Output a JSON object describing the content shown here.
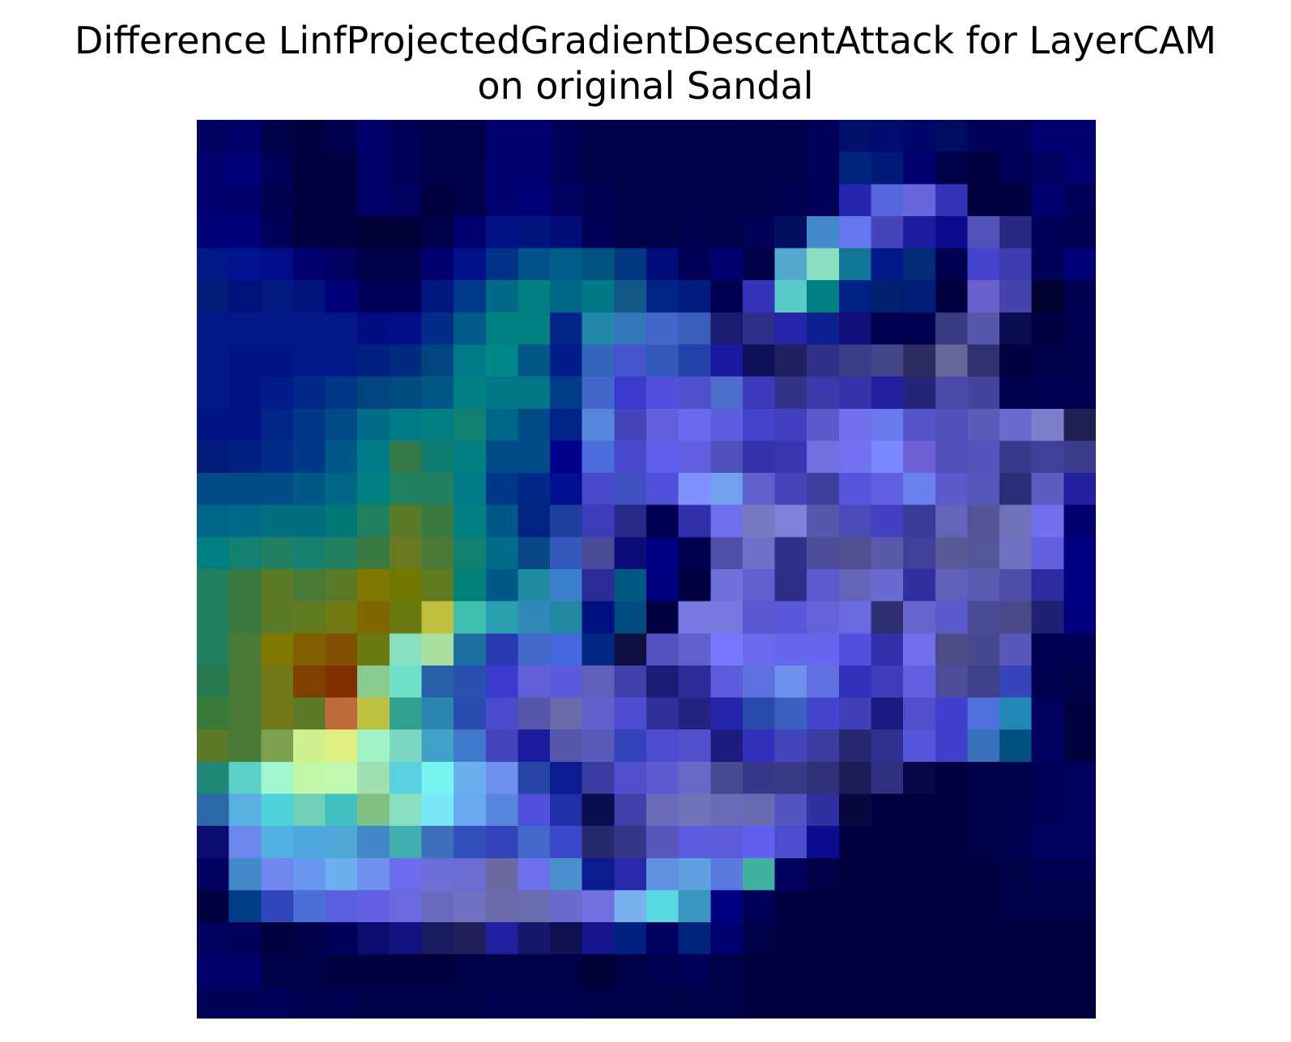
{
  "title_line1": "Difference LinfProjectedGradientDescentAttack for LayerCAM",
  "title_line2": "on original Sandal",
  "chart_data": {
    "type": "heatmap",
    "title": "Difference LinfProjectedGradientDescentAttack for LayerCAM on original Sandal",
    "rows": 28,
    "cols": 28,
    "axes_visible": false,
    "grid": false,
    "legend": "none",
    "colors": [
      "#000060",
      "#00006a",
      "#000048",
      "#000040",
      "#000050",
      "#00006a",
      "#000058",
      "#00004a",
      "#000048",
      "#00006e",
      "#000070",
      "#000058",
      "#000048",
      "#000048",
      "#000048",
      "#000048",
      "#000048",
      "#00004a",
      "#000048",
      "#000058",
      "#00106a",
      "#000c70",
      "#00066a",
      "#000c60",
      "#000058",
      "#00005a",
      "#000070",
      "#000070",
      "#000070",
      "#00007a",
      "#000058",
      "#000040",
      "#000040",
      "#00006a",
      "#000058",
      "#00004a",
      "#000048",
      "#000070",
      "#000070",
      "#000058",
      "#000048",
      "#000048",
      "#000048",
      "#000048",
      "#000048",
      "#00004a",
      "#000048",
      "#000058",
      "#00247c",
      "#001a78",
      "#000070",
      "#00004a",
      "#000040",
      "#000058",
      "#000060",
      "#000070",
      "#000070",
      "#00006a",
      "#000050",
      "#000040",
      "#000040",
      "#00006a",
      "#000060",
      "#000040",
      "#000048",
      "#000070",
      "#000078",
      "#000060",
      "#000050",
      "#000048",
      "#000048",
      "#000048",
      "#000048",
      "#00004a",
      "#000050",
      "#000058",
      "#2424b0",
      "#5566dd",
      "#6666dd",
      "#3333b8",
      "#000040",
      "#000040",
      "#000070",
      "#000058",
      "#000078",
      "#00007a",
      "#000058",
      "#000040",
      "#000040",
      "#000038",
      "#000038",
      "#000048",
      "#000070",
      "#001488",
      "#001480",
      "#000c78",
      "#000058",
      "#00004a",
      "#000048",
      "#000050",
      "#000048",
      "#000058",
      "#000e60",
      "#4488cc",
      "#6677ee",
      "#4444bb",
      "#1c1ca0",
      "#0c0c90",
      "#5252b8",
      "#282880",
      "#000058",
      "#000050",
      "#001888",
      "#001490",
      "#000c88",
      "#000070",
      "#000060",
      "#000048",
      "#000048",
      "#000070",
      "#001088",
      "#003388",
      "#005288",
      "#005c88",
      "#005580",
      "#003880",
      "#000c78",
      "#000058",
      "#000070",
      "#000048",
      "#55aacc",
      "#88e0c0",
      "#117799",
      "#001888",
      "#002c78",
      "#000050",
      "#4444cc",
      "#3c3cb0",
      "#000058",
      "#000078",
      "#001c78",
      "#00107a",
      "#001a80",
      "#001480",
      "#000078",
      "#000058",
      "#000058",
      "#001880",
      "#003a88",
      "#006a88",
      "#008080",
      "#006688",
      "#007888",
      "#115888",
      "#00248a",
      "#001c80",
      "#000050",
      "#3333bb",
      "#55ccc8",
      "#008080",
      "#002088",
      "#002070",
      "#001e78",
      "#000040",
      "#6a60cc",
      "#4444aa",
      "#000030",
      "#000050",
      "#001888",
      "#001888",
      "#001888",
      "#001888",
      "#001888",
      "#000c80",
      "#000c88",
      "#002c88",
      "#005a88",
      "#008080",
      "#008080",
      "#002488",
      "#2288aa",
      "#3377bb",
      "#4466cc",
      "#3a5eb8",
      "#1a1a70",
      "#2e2e88",
      "#2424aa",
      "#0c2090",
      "#101078",
      "#000050",
      "#000050",
      "#3a3a80",
      "#5656aa",
      "#0c0c50",
      "#000040",
      "#000050",
      "#001888",
      "#001488",
      "#001488",
      "#001888",
      "#001888",
      "#002080",
      "#002a80",
      "#004480",
      "#007a88",
      "#008888",
      "#005888",
      "#001c88",
      "#3366bb",
      "#4455cc",
      "#3358bb",
      "#2244aa",
      "#1818a0",
      "#101058",
      "#202060",
      "#303088",
      "#3c3c88",
      "#444488",
      "#2c2c60",
      "#666699",
      "#303070",
      "#000040",
      "#000048",
      "#000050",
      "#001888",
      "#001488",
      "#001c88",
      "#002888",
      "#003888",
      "#004480",
      "#004c80",
      "#005888",
      "#008080",
      "#007888",
      "#007888",
      "#003c88",
      "#4466cc",
      "#3a3acc",
      "#5050dd",
      "#5050cc",
      "#4e6ecc",
      "#3a3aba",
      "#333388",
      "#3a3aaa",
      "#3333aa",
      "#2020a0",
      "#242478",
      "#4a4aaa",
      "#44449e",
      "#000050",
      "#000050",
      "#000050",
      "#001488",
      "#001488",
      "#002488",
      "#003888",
      "#004a88",
      "#006c88",
      "#007a88",
      "#008080",
      "#128070",
      "#006688",
      "#004a88",
      "#002488",
      "#5588dd",
      "#4444bb",
      "#6060dd",
      "#6a6aee",
      "#5c5ce0",
      "#4444cc",
      "#4040c0",
      "#5a5acc",
      "#7070ee",
      "#6a7aee",
      "#5555cc",
      "#5050bb",
      "#5a5ab8",
      "#6a6acc",
      "#7e7ecc",
      "#202050",
      "#001c78",
      "#002080",
      "#002c88",
      "#003888",
      "#005888",
      "#007a88",
      "#337a48",
      "#107c70",
      "#008080",
      "#004a88",
      "#004c88",
      "#00008a",
      "#4c6cdd",
      "#4848cc",
      "#6060ee",
      "#6060e0",
      "#5050bb",
      "#3333aa",
      "#3636b0",
      "#7070e0",
      "#7070f0",
      "#7a88ff",
      "#7060d8",
      "#5050bb",
      "#5454bb",
      "#3a3a8c",
      "#40409a",
      "#3c3c8c",
      "#004a88",
      "#004a88",
      "#004c88",
      "#005888",
      "#006688",
      "#008080",
      "#208060",
      "#208060",
      "#007a88",
      "#003888",
      "#002888",
      "#001090",
      "#4848cc",
      "#3c50c0",
      "#5050dd",
      "#8090ff",
      "#70a0ee",
      "#6060cc",
      "#4444bb",
      "#3e3e9e",
      "#5656dd",
      "#6060e0",
      "#6a80ee",
      "#5a5acc",
      "#5656bb",
      "#2c2c78",
      "#5c5cc0",
      "#2020a0",
      "#006688",
      "#006a88",
      "#007080",
      "#007080",
      "#007878",
      "#208060",
      "#5a7a28",
      "#3a7a40",
      "#008080",
      "#005888",
      "#002480",
      "#2040a0",
      "#3c3cbb",
      "#282888",
      "#000050",
      "#3030a8",
      "#7070ee",
      "#7878c0",
      "#8080d8",
      "#5656aa",
      "#4a4ab8",
      "#4040c0",
      "#3a3a99",
      "#6464bb",
      "#545496",
      "#7070bb",
      "#7070ee",
      "#000070",
      "#008080",
      "#108070",
      "#208060",
      "#188070",
      "#208060",
      "#3a7a40",
      "#6a7a20",
      "#4a7a38",
      "#108070",
      "#006c88",
      "#0c4888",
      "#3358bb",
      "#4a4a99",
      "#0c0c78",
      "#000080",
      "#000050",
      "#5050a8",
      "#7070c8",
      "#303088",
      "#4c4c99",
      "#505090",
      "#5a5aaa",
      "#40409a",
      "#5a5a99",
      "#56569a",
      "#7070c0",
      "#6060dd",
      "#000080",
      "#208060",
      "#3a7a40",
      "#5a7a28",
      "#4a7a38",
      "#5a7a28",
      "#807800",
      "#707800",
      "#607a20",
      "#008078",
      "#005888",
      "#1e8ca0",
      "#3a80cc",
      "#2c2c99",
      "#005880",
      "#000080",
      "#000040",
      "#7070dd",
      "#6060d0",
      "#2e2e88",
      "#5c5cd0",
      "#6464bb",
      "#6a6ad0",
      "#3030a0",
      "#6060bb",
      "#5a5ab0",
      "#4e4ea8",
      "#2c2ca0",
      "#000080",
      "#208060",
      "#3a7a40",
      "#5a7a28",
      "#607a20",
      "#707a10",
      "#806800",
      "#6a7a10",
      "#c0c040",
      "#40c0b0",
      "#28a0b0",
      "#3088b8",
      "#2288a0",
      "#00107e",
      "#004c80",
      "#000040",
      "#7878e0",
      "#7878e0",
      "#5858d0",
      "#5858d8",
      "#6464d8",
      "#6a6ae0",
      "#2e2e70",
      "#6666cc",
      "#5a5acc",
      "#4a4a99",
      "#4a4a88",
      "#202070",
      "#000080",
      "#208060",
      "#4a7a38",
      "#807800",
      "#806000",
      "#805000",
      "#6a7a10",
      "#88e0c0",
      "#a8e0a0",
      "#1c70a0",
      "#2a3ab0",
      "#4468cc",
      "#4468dd",
      "#002880",
      "#101040",
      "#5050c0",
      "#6060cc",
      "#7878ff",
      "#6a6aee",
      "#6666ee",
      "#6666ee",
      "#5050dd",
      "#3030aa",
      "#7070ee",
      "#4c4c88",
      "#484890",
      "#5858bb",
      "#000050",
      "#000050",
      "#287850",
      "#4a7a38",
      "#707818",
      "#804000",
      "#803000",
      "#88cc90",
      "#70e0c8",
      "#2860a8",
      "#2850b0",
      "#3a3acc",
      "#6060d8",
      "#5a5add",
      "#6060bb",
      "#4040aa",
      "#1c1c78",
      "#2c2c99",
      "#5c5cdd",
      "#5c70e0",
      "#7090ee",
      "#6070e0",
      "#3030b8",
      "#3c3cb8",
      "#6060e0",
      "#4c4c99",
      "#404088",
      "#3844bb",
      "#000050",
      "#000048",
      "#3a7a38",
      "#4a7a38",
      "#707818",
      "#5a7a28",
      "#bb6a38",
      "#c0c040",
      "#30a090",
      "#2a88b0",
      "#2a4ab0",
      "#4a4acc",
      "#5656aa",
      "#6a6aaa",
      "#6060cc",
      "#4c4cd0",
      "#303098",
      "#242480",
      "#2424aa",
      "#2a4aaa",
      "#3c60c0",
      "#4444cc",
      "#4040b8",
      "#1a1a80",
      "#5050cc",
      "#4040cc",
      "#5070dd",
      "#2288b8",
      "#000060",
      "#000040",
      "#5a7a28",
      "#4a7a38",
      "#7aa050",
      "#cef090",
      "#e0f080",
      "#a0f0c8",
      "#7ad8c0",
      "#40a0c8",
      "#4078cc",
      "#4444bb",
      "#1c1ca0",
      "#5656aa",
      "#5a5abb",
      "#3344bb",
      "#4c4cd0",
      "#5050cc",
      "#1c1c80",
      "#3030bb",
      "#4444bb",
      "#3c3ca0",
      "#282870",
      "#303090",
      "#5656dd",
      "#4040cc",
      "#3870bb",
      "#005080",
      "#000060",
      "#000040",
      "#208878",
      "#5ad0c8",
      "#a0f8d0",
      "#c0f8a8",
      "#c0f8b0",
      "#a0e0b0",
      "#58d0e0",
      "#78f4f0",
      "#68b0ee",
      "#7090ee",
      "#2844a8",
      "#0c1c90",
      "#3a3aa0",
      "#5050cc",
      "#5c5cd0",
      "#6868c8",
      "#4a4a90",
      "#383888",
      "#3a3a88",
      "#303078",
      "#1c1c58",
      "#303080",
      "#080848",
      "#000040",
      "#000048",
      "#000048",
      "#000058",
      "#000060",
      "#2a68a8",
      "#58b0e0",
      "#50d0d8",
      "#70d0b8",
      "#40c0c0",
      "#80c080",
      "#88e0c0",
      "#78e8f8",
      "#6aa8ee",
      "#5888dd",
      "#5050dd",
      "#2030a8",
      "#0c0c50",
      "#4040aa",
      "#6a6ab8",
      "#7272b8",
      "#6a6ab8",
      "#6a6ab0",
      "#5454c0",
      "#3030a0",
      "#080840",
      "#000040",
      "#000040",
      "#000040",
      "#000048",
      "#000050",
      "#000058",
      "#000060",
      "#0c0c70",
      "#6a88ee",
      "#50b0e0",
      "#50a8e0",
      "#50a8d8",
      "#4088c8",
      "#40b0b0",
      "#3c70bb",
      "#3050bb",
      "#3344bb",
      "#4468cc",
      "#3c48cc",
      "#28286c",
      "#363688",
      "#5656bb",
      "#5c5ce0",
      "#5c5cd8",
      "#6060ee",
      "#4c4cd0",
      "#0c0c90",
      "#000040",
      "#000040",
      "#000040",
      "#000040",
      "#000048",
      "#000050",
      "#000060",
      "#000060",
      "#000060",
      "#4488cc",
      "#7088ee",
      "#6a98ee",
      "#6ab0ee",
      "#7090ee",
      "#6c6cee",
      "#6e6ed8",
      "#6c6cd0",
      "#6a6aa0",
      "#6c70ee",
      "#4a90cc",
      "#0c1c90",
      "#2828aa",
      "#6090e0",
      "#60a0e0",
      "#5a7ae0",
      "#40b0a0",
      "#000060",
      "#000048",
      "#000040",
      "#000040",
      "#000040",
      "#000040",
      "#000040",
      "#000048",
      "#000050",
      "#000050",
      "#000040",
      "#003c88",
      "#3044bb",
      "#4a70d8",
      "#5860dd",
      "#6060e0",
      "#6a6ae0",
      "#6a6ac0",
      "#7070c0",
      "#6a6aaa",
      "#6c6cb0",
      "#6a6acc",
      "#7070e0",
      "#78b0f0",
      "#5ad8e0",
      "#3a98c0",
      "#000080",
      "#000058",
      "#000040",
      "#000040",
      "#000040",
      "#000040",
      "#000040",
      "#000040",
      "#000040",
      "#000048",
      "#000048",
      "#000048",
      "#000060",
      "#000058",
      "#000040",
      "#000048",
      "#000058",
      "#0c0c70",
      "#121280",
      "#1a1a60",
      "#20205a",
      "#2020a0",
      "#18186a",
      "#101050",
      "#14148c",
      "#002080",
      "#000060",
      "#00247c",
      "#000070",
      "#000048",
      "#000040",
      "#000040",
      "#000040",
      "#000040",
      "#000040",
      "#000040",
      "#000040",
      "#000040",
      "#000040",
      "#000040",
      "#00006a",
      "#00006a",
      "#000048",
      "#000048",
      "#000040",
      "#000040",
      "#000040",
      "#000040",
      "#000048",
      "#000048",
      "#000048",
      "#000048",
      "#000038",
      "#000048",
      "#000050",
      "#000058",
      "#000048",
      "#000040",
      "#000040",
      "#000040",
      "#000040",
      "#000040",
      "#000040",
      "#000040",
      "#000040",
      "#000040",
      "#000040",
      "#000040",
      "#000058",
      "#000058",
      "#000058",
      "#000050",
      "#000050",
      "#000048",
      "#000048",
      "#000048",
      "#000048",
      "#000050",
      "#000050",
      "#000050",
      "#000048",
      "#000048",
      "#000048",
      "#000048",
      "#000048",
      "#000040",
      "#000040",
      "#000040",
      "#000040",
      "#000040",
      "#000040",
      "#000040",
      "#000040",
      "#000040",
      "#000040",
      "#000040"
    ]
  }
}
